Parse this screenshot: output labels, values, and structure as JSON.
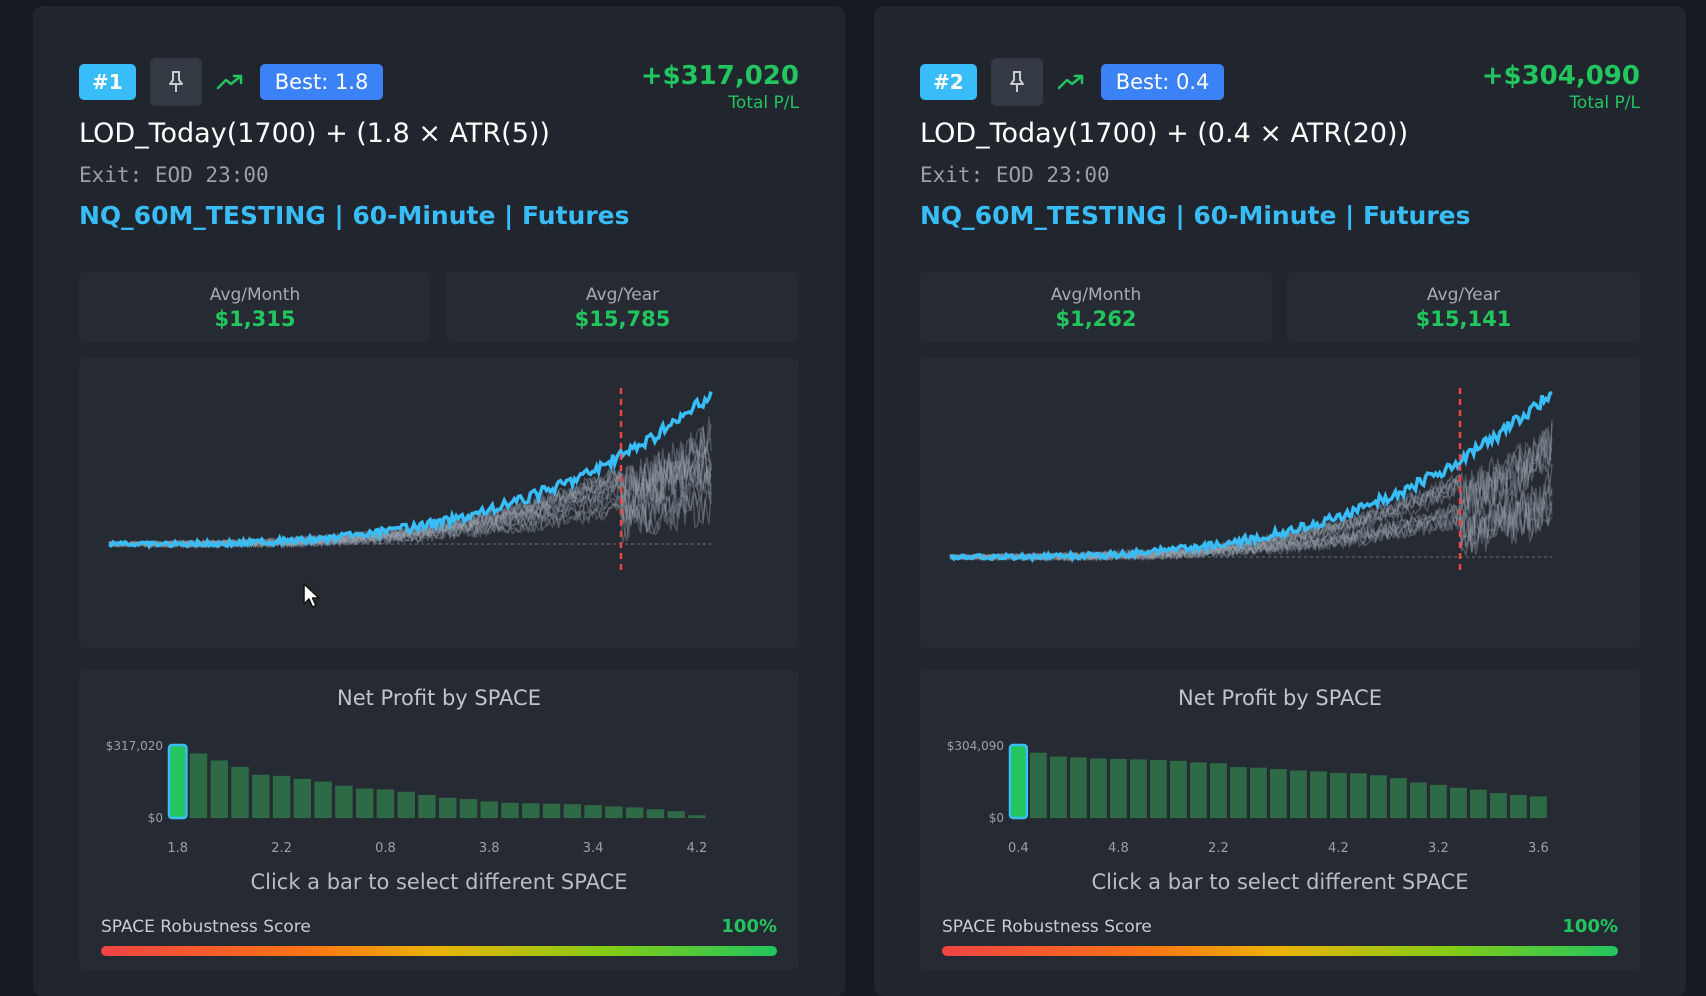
{
  "cards": [
    {
      "rank": "#1",
      "best": "Best: 1.8",
      "total_pl": "+$317,020",
      "total_pl_label": "Total P/L",
      "title": "LOD_Today(1700) + (1.8 × ATR(5))",
      "exit": "Exit: EOD 23:00",
      "symbol": "NQ_60M_TESTING | 60-Minute | Futures",
      "avg_month_label": "Avg/Month",
      "avg_month": "$1,315",
      "avg_year_label": "Avg/Year",
      "avg_year": "$15,785",
      "net_profit_title": "Net Profit by SPACE",
      "hint": "Click a bar to select different SPACE",
      "robustness_label": "SPACE Robustness Score",
      "robustness_value": "100%",
      "robustness_fraction": 1.0
    },
    {
      "rank": "#2",
      "best": "Best: 0.4",
      "total_pl": "+$304,090",
      "total_pl_label": "Total P/L",
      "title": "LOD_Today(1700) + (0.4 × ATR(20))",
      "exit": "Exit: EOD 23:00",
      "symbol": "NQ_60M_TESTING | 60-Minute | Futures",
      "avg_month_label": "Avg/Month",
      "avg_month": "$1,262",
      "avg_year_label": "Avg/Year",
      "avg_year": "$15,141",
      "net_profit_title": "Net Profit by SPACE",
      "hint": "Click a bar to select different SPACE",
      "robustness_label": "SPACE Robustness Score",
      "robustness_value": "100%",
      "robustness_fraction": 1.0
    }
  ],
  "colors": {
    "accent": "#38bdf8",
    "profit": "#22c55e",
    "bar": "#2d6a45",
    "selected_bar": "#22c55e",
    "cutoff_line": "#ef4444"
  },
  "chart_data": [
    {
      "type": "bar",
      "title": "Net Profit by SPACE",
      "y_tick_labels": [
        "$317,020",
        "$0"
      ],
      "x_tick_labels": [
        "1.8",
        "2.2",
        "0.8",
        "3.8",
        "3.4",
        "4.2"
      ],
      "values": [
        317020,
        280000,
        250000,
        222000,
        188000,
        183000,
        170000,
        158000,
        140000,
        128000,
        124000,
        114000,
        100000,
        88000,
        82000,
        72000,
        66000,
        64000,
        62000,
        60000,
        56000,
        50000,
        46000,
        38000,
        30000,
        12000
      ],
      "selected_index": 0,
      "ylim": [
        0,
        317020
      ]
    },
    {
      "type": "bar",
      "title": "Net Profit by SPACE",
      "y_tick_labels": [
        "$304,090",
        "$0"
      ],
      "x_tick_labels": [
        "0.4",
        "4.8",
        "2.2",
        "4.2",
        "3.2",
        "3.6"
      ],
      "values": [
        304090,
        272000,
        256000,
        252000,
        248000,
        246000,
        244000,
        242000,
        238000,
        232000,
        228000,
        212000,
        210000,
        204000,
        198000,
        194000,
        188000,
        186000,
        178000,
        166000,
        148000,
        138000,
        126000,
        118000,
        104000,
        96000,
        90000
      ],
      "selected_index": 0,
      "ylim": [
        0,
        304090
      ]
    }
  ]
}
